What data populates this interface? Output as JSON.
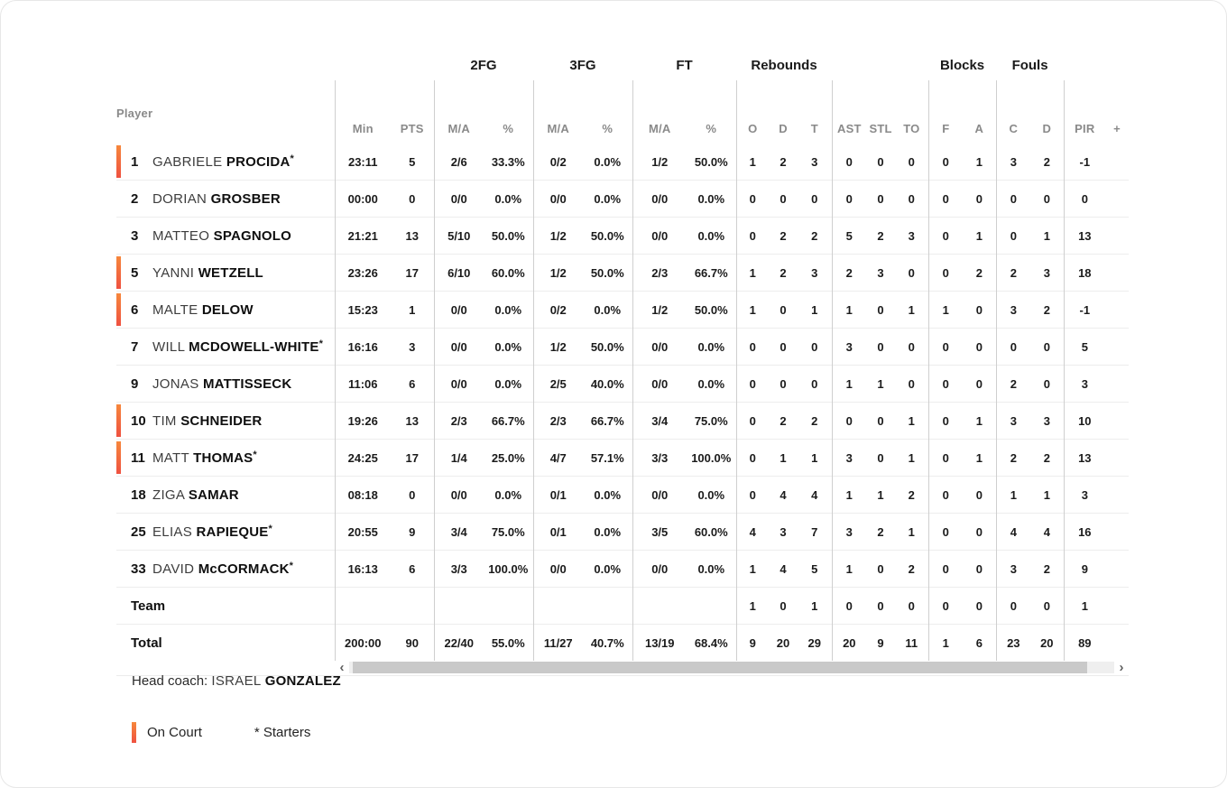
{
  "table": {
    "player_col_header": "Player",
    "groups": [
      {
        "label": "",
        "sub": [
          "Min",
          "PTS"
        ]
      },
      {
        "label": "2FG",
        "sub": [
          "M/A",
          "%"
        ]
      },
      {
        "label": "3FG",
        "sub": [
          "M/A",
          "%"
        ]
      },
      {
        "label": "FT",
        "sub": [
          "M/A",
          "%"
        ]
      },
      {
        "label": "Rebounds",
        "sub": [
          "O",
          "D",
          "T"
        ]
      },
      {
        "label": "",
        "sub": [
          "AST",
          "STL",
          "TO"
        ]
      },
      {
        "label": "Blocks",
        "sub": [
          "F",
          "A"
        ]
      },
      {
        "label": "Fouls",
        "sub": [
          "C",
          "D"
        ]
      },
      {
        "label": "",
        "sub": [
          "PIR",
          "+"
        ]
      }
    ],
    "rows": [
      {
        "num": "1",
        "first": "GABRIELE",
        "last": "PROCIDA",
        "starter": true,
        "on_court": true,
        "stats": [
          "23:11",
          "5",
          "2/6",
          "33.3%",
          "0/2",
          "0.0%",
          "1/2",
          "50.0%",
          "1",
          "2",
          "3",
          "0",
          "0",
          "0",
          "0",
          "1",
          "3",
          "2",
          "-1",
          ""
        ]
      },
      {
        "num": "2",
        "first": "DORIAN",
        "last": "GROSBER",
        "starter": false,
        "on_court": false,
        "stats": [
          "00:00",
          "0",
          "0/0",
          "0.0%",
          "0/0",
          "0.0%",
          "0/0",
          "0.0%",
          "0",
          "0",
          "0",
          "0",
          "0",
          "0",
          "0",
          "0",
          "0",
          "0",
          "0",
          ""
        ]
      },
      {
        "num": "3",
        "first": "MATTEO",
        "last": "SPAGNOLO",
        "starter": false,
        "on_court": false,
        "stats": [
          "21:21",
          "13",
          "5/10",
          "50.0%",
          "1/2",
          "50.0%",
          "0/0",
          "0.0%",
          "0",
          "2",
          "2",
          "5",
          "2",
          "3",
          "0",
          "1",
          "0",
          "1",
          "13",
          ""
        ]
      },
      {
        "num": "5",
        "first": "YANNI",
        "last": "WETZELL",
        "starter": false,
        "on_court": true,
        "stats": [
          "23:26",
          "17",
          "6/10",
          "60.0%",
          "1/2",
          "50.0%",
          "2/3",
          "66.7%",
          "1",
          "2",
          "3",
          "2",
          "3",
          "0",
          "0",
          "2",
          "2",
          "3",
          "18",
          ""
        ]
      },
      {
        "num": "6",
        "first": "MALTE",
        "last": "DELOW",
        "starter": false,
        "on_court": true,
        "stats": [
          "15:23",
          "1",
          "0/0",
          "0.0%",
          "0/2",
          "0.0%",
          "1/2",
          "50.0%",
          "1",
          "0",
          "1",
          "1",
          "0",
          "1",
          "1",
          "0",
          "3",
          "2",
          "-1",
          ""
        ]
      },
      {
        "num": "7",
        "first": "WILL",
        "last": "MCDOWELL-WHITE",
        "starter": true,
        "on_court": false,
        "stats": [
          "16:16",
          "3",
          "0/0",
          "0.0%",
          "1/2",
          "50.0%",
          "0/0",
          "0.0%",
          "0",
          "0",
          "0",
          "3",
          "0",
          "0",
          "0",
          "0",
          "0",
          "0",
          "5",
          ""
        ]
      },
      {
        "num": "9",
        "first": "JONAS",
        "last": "MATTISSECK",
        "starter": false,
        "on_court": false,
        "stats": [
          "11:06",
          "6",
          "0/0",
          "0.0%",
          "2/5",
          "40.0%",
          "0/0",
          "0.0%",
          "0",
          "0",
          "0",
          "1",
          "1",
          "0",
          "0",
          "0",
          "2",
          "0",
          "3",
          ""
        ]
      },
      {
        "num": "10",
        "first": "TIM",
        "last": "SCHNEIDER",
        "starter": false,
        "on_court": true,
        "stats": [
          "19:26",
          "13",
          "2/3",
          "66.7%",
          "2/3",
          "66.7%",
          "3/4",
          "75.0%",
          "0",
          "2",
          "2",
          "0",
          "0",
          "1",
          "0",
          "1",
          "3",
          "3",
          "10",
          ""
        ]
      },
      {
        "num": "11",
        "first": "MATT",
        "last": "THOMAS",
        "starter": true,
        "on_court": true,
        "stats": [
          "24:25",
          "17",
          "1/4",
          "25.0%",
          "4/7",
          "57.1%",
          "3/3",
          "100.0%",
          "0",
          "1",
          "1",
          "3",
          "0",
          "1",
          "0",
          "1",
          "2",
          "2",
          "13",
          ""
        ]
      },
      {
        "num": "18",
        "first": "ZIGA",
        "last": "SAMAR",
        "starter": false,
        "on_court": false,
        "stats": [
          "08:18",
          "0",
          "0/0",
          "0.0%",
          "0/1",
          "0.0%",
          "0/0",
          "0.0%",
          "0",
          "4",
          "4",
          "1",
          "1",
          "2",
          "0",
          "0",
          "1",
          "1",
          "3",
          ""
        ]
      },
      {
        "num": "25",
        "first": "ELIAS",
        "last": "RAPIEQUE",
        "starter": true,
        "on_court": false,
        "stats": [
          "20:55",
          "9",
          "3/4",
          "75.0%",
          "0/1",
          "0.0%",
          "3/5",
          "60.0%",
          "4",
          "3",
          "7",
          "3",
          "2",
          "1",
          "0",
          "0",
          "4",
          "4",
          "16",
          ""
        ]
      },
      {
        "num": "33",
        "first": "DAVID",
        "last": "McCORMACK",
        "starter": true,
        "on_court": false,
        "stats": [
          "16:13",
          "6",
          "3/3",
          "100.0%",
          "0/0",
          "0.0%",
          "0/0",
          "0.0%",
          "1",
          "4",
          "5",
          "1",
          "0",
          "2",
          "0",
          "0",
          "3",
          "2",
          "9",
          ""
        ]
      },
      {
        "label": "Team",
        "stats": [
          "",
          "",
          "",
          "",
          "",
          "",
          "",
          "",
          "1",
          "0",
          "1",
          "0",
          "0",
          "0",
          "0",
          "0",
          "0",
          "0",
          "1",
          ""
        ]
      },
      {
        "label": "Total",
        "stats": [
          "200:00",
          "90",
          "22/40",
          "55.0%",
          "11/27",
          "40.7%",
          "13/19",
          "68.4%",
          "9",
          "20",
          "29",
          "20",
          "9",
          "11",
          "1",
          "6",
          "23",
          "20",
          "89",
          ""
        ]
      }
    ],
    "starter_mark": "*"
  },
  "scrollbar": {
    "left_icon": "‹",
    "right_icon": "›"
  },
  "footer": {
    "head_coach_label": "Head coach:",
    "coach_first": "ISRAEL",
    "coach_last": "GONZALEZ",
    "legend_on_court": "On Court",
    "legend_starters": "* Starters"
  },
  "colors": {
    "on_court_accent_top": "#f6873c",
    "on_court_accent_bottom": "#ef5140",
    "header_text": "#8a8a8a",
    "value_text": "#1b1b1b",
    "group_line": "#cfcfcf",
    "row_line": "#ededed",
    "scroll_thumb": "#c9c9c9",
    "scroll_track": "#efefef"
  }
}
